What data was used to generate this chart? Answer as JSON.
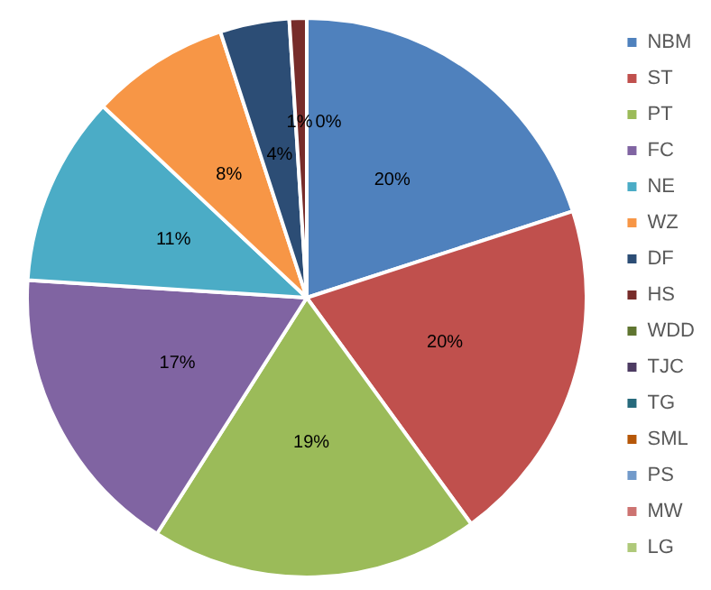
{
  "chart_data": {
    "type": "pie",
    "categories": [
      "NBM",
      "ST",
      "PT",
      "FC",
      "NE",
      "WZ",
      "DF",
      "HS",
      "WDD",
      "TJC",
      "TG",
      "SML",
      "PS",
      "MW",
      "LG"
    ],
    "values": [
      20,
      20,
      19,
      17,
      11,
      8,
      4,
      1,
      0,
      0,
      0,
      0,
      0,
      0,
      0
    ],
    "colors": [
      "#4f81bd",
      "#c0504d",
      "#9bbb59",
      "#8064a2",
      "#4bacc6",
      "#f79646",
      "#2c4d75",
      "#772c2a",
      "#5f7530",
      "#4d3b62",
      "#276a7c",
      "#b65708",
      "#729aca",
      "#cd7371",
      "#afc97a"
    ],
    "value_labels": [
      "20%",
      "20%",
      "19%",
      "17%",
      "11%",
      "8%",
      "4%",
      "1%",
      "0%",
      null,
      null,
      null,
      null,
      null,
      null
    ],
    "legend": "right"
  }
}
